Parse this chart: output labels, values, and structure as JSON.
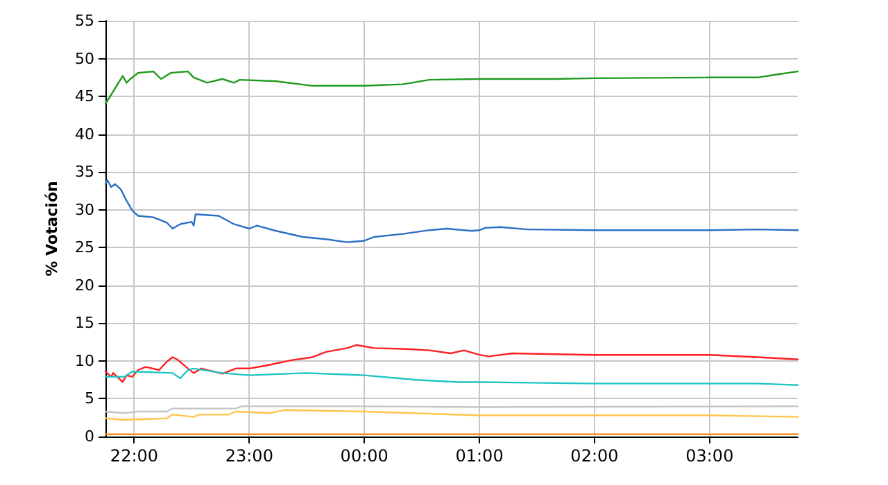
{
  "chart_data": {
    "type": "line",
    "ylabel": "% Votación",
    "xlim": [
      "2000-01-01T21:45",
      "2000-01-02T03:46"
    ],
    "ylim": [
      0,
      55
    ],
    "xticks": [
      {
        "value": "2000-01-01T22:00",
        "label": "22:00"
      },
      {
        "value": "2000-01-01T23:00",
        "label": "23:00"
      },
      {
        "value": "2000-01-02T00:00",
        "label": "00:00"
      },
      {
        "value": "2000-01-02T01:00",
        "label": "01:00"
      },
      {
        "value": "2000-01-02T02:00",
        "label": "02:00"
      },
      {
        "value": "2000-01-02T03:00",
        "label": "03:00"
      }
    ],
    "yticks": [
      0,
      5,
      10,
      15,
      20,
      25,
      30,
      35,
      40,
      45,
      50,
      55
    ],
    "grid": true,
    "marker": "none",
    "line_style": "solid",
    "series": [
      {
        "color": "#1f9a1f",
        "x": [
          "2000-01-01T21:45",
          "2000-01-01T21:54",
          "2000-01-01T21:56",
          "2000-01-01T21:58",
          "2000-01-01T22:02",
          "2000-01-01T22:10",
          "2000-01-01T22:14",
          "2000-01-01T22:19",
          "2000-01-01T22:28",
          "2000-01-01T22:31",
          "2000-01-01T22:38",
          "2000-01-01T22:46",
          "2000-01-01T22:52",
          "2000-01-01T22:55",
          "2000-01-01T23:14",
          "2000-01-01T23:33",
          "2000-01-01T23:47",
          "2000-01-02T00:00",
          "2000-01-02T00:20",
          "2000-01-02T00:34",
          "2000-01-02T01:00",
          "2000-01-02T01:39",
          "2000-01-02T02:00",
          "2000-01-02T03:00",
          "2000-01-02T03:25",
          "2000-01-02T03:35",
          "2000-01-02T03:46"
        ],
        "values": [
          44.0,
          47.7,
          46.8,
          47.3,
          48.1,
          48.3,
          47.3,
          48.1,
          48.3,
          47.5,
          46.8,
          47.3,
          46.8,
          47.2,
          47.0,
          46.4,
          46.4,
          46.4,
          46.6,
          47.2,
          47.3,
          47.3,
          47.4,
          47.5,
          47.5,
          47.9,
          48.3
        ]
      },
      {
        "color": "#2a6fc4",
        "x": [
          "2000-01-01T21:45",
          "2000-01-01T21:46",
          "2000-01-01T21:48",
          "2000-01-01T21:50",
          "2000-01-01T21:53",
          "2000-01-01T21:56",
          "2000-01-01T21:59",
          "2000-01-01T22:02",
          "2000-01-01T22:10",
          "2000-01-01T22:17",
          "2000-01-01T22:20",
          "2000-01-01T22:24",
          "2000-01-01T22:30",
          "2000-01-01T22:31",
          "2000-01-01T22:32",
          "2000-01-01T22:44",
          "2000-01-01T22:52",
          "2000-01-01T23:00",
          "2000-01-01T23:04",
          "2000-01-01T23:14",
          "2000-01-01T23:28",
          "2000-01-01T23:40",
          "2000-01-01T23:51",
          "2000-01-02T00:00",
          "2000-01-02T00:05",
          "2000-01-02T00:20",
          "2000-01-02T00:34",
          "2000-01-02T00:43",
          "2000-01-02T00:56",
          "2000-01-02T01:00",
          "2000-01-02T01:03",
          "2000-01-02T01:11",
          "2000-01-02T01:25",
          "2000-01-02T02:00",
          "2000-01-02T03:00",
          "2000-01-02T03:25",
          "2000-01-02T03:46"
        ],
        "values": [
          33.4,
          33.9,
          33.0,
          33.4,
          32.7,
          31.2,
          29.9,
          29.2,
          29.0,
          28.3,
          27.5,
          28.1,
          28.4,
          27.9,
          29.4,
          29.2,
          28.1,
          27.5,
          27.9,
          27.2,
          26.4,
          26.1,
          25.7,
          25.9,
          26.4,
          26.8,
          27.3,
          27.5,
          27.2,
          27.3,
          27.6,
          27.7,
          27.4,
          27.3,
          27.3,
          27.4,
          27.3
        ]
      },
      {
        "color": "#ff1f1f",
        "x": [
          "2000-01-01T21:45",
          "2000-01-01T21:48",
          "2000-01-01T21:49",
          "2000-01-01T21:54",
          "2000-01-01T21:56",
          "2000-01-01T21:59",
          "2000-01-01T22:02",
          "2000-01-01T22:06",
          "2000-01-01T22:13",
          "2000-01-01T22:17",
          "2000-01-01T22:20",
          "2000-01-01T22:23",
          "2000-01-01T22:28",
          "2000-01-01T22:31",
          "2000-01-01T22:35",
          "2000-01-01T22:46",
          "2000-01-01T22:53",
          "2000-01-01T23:00",
          "2000-01-01T23:09",
          "2000-01-01T23:22",
          "2000-01-01T23:33",
          "2000-01-01T23:40",
          "2000-01-01T23:51",
          "2000-01-01T23:56",
          "2000-01-02T00:05",
          "2000-01-02T00:20",
          "2000-01-02T00:34",
          "2000-01-02T00:45",
          "2000-01-02T00:52",
          "2000-01-02T01:00",
          "2000-01-02T01:05",
          "2000-01-02T01:17",
          "2000-01-02T02:00",
          "2000-01-02T03:00",
          "2000-01-02T03:25",
          "2000-01-02T03:46"
        ],
        "values": [
          8.6,
          7.9,
          8.4,
          7.2,
          8.1,
          7.9,
          8.8,
          9.2,
          8.8,
          9.9,
          10.5,
          10.1,
          9.0,
          8.4,
          9.0,
          8.3,
          9.0,
          9.0,
          9.4,
          10.1,
          10.5,
          11.2,
          11.7,
          12.1,
          11.7,
          11.6,
          11.4,
          11.0,
          11.4,
          10.8,
          10.6,
          11.0,
          10.8,
          10.8,
          10.5,
          10.2
        ]
      },
      {
        "color": "#1fc4c4",
        "x": [
          "2000-01-01T21:45",
          "2000-01-01T21:55",
          "2000-01-01T21:59",
          "2000-01-01T22:20",
          "2000-01-01T22:24",
          "2000-01-01T22:28",
          "2000-01-01T22:31",
          "2000-01-01T22:46",
          "2000-01-01T23:00",
          "2000-01-01T23:29",
          "2000-01-02T00:00",
          "2000-01-02T00:27",
          "2000-01-02T00:49",
          "2000-01-02T01:00",
          "2000-01-02T02:00",
          "2000-01-02T03:00",
          "2000-01-02T03:25",
          "2000-01-02T03:46"
        ],
        "values": [
          7.9,
          7.9,
          8.6,
          8.4,
          7.7,
          8.8,
          9.0,
          8.4,
          8.1,
          8.4,
          8.1,
          7.5,
          7.2,
          7.2,
          7.0,
          7.0,
          7.0,
          6.8
        ]
      },
      {
        "color": "#c4c4c4",
        "x": [
          "2000-01-01T21:45",
          "2000-01-01T21:55",
          "2000-01-01T22:02",
          "2000-01-01T22:17",
          "2000-01-01T22:20",
          "2000-01-01T22:53",
          "2000-01-01T22:56",
          "2000-01-01T23:51",
          "2000-01-02T01:00",
          "2000-01-02T03:46"
        ],
        "values": [
          3.3,
          3.1,
          3.3,
          3.3,
          3.7,
          3.7,
          4.0,
          4.0,
          3.9,
          4.0
        ]
      },
      {
        "color": "#ffc44a",
        "x": [
          "2000-01-01T21:45",
          "2000-01-01T21:55",
          "2000-01-01T22:17",
          "2000-01-01T22:20",
          "2000-01-01T22:31",
          "2000-01-01T22:34",
          "2000-01-01T22:49",
          "2000-01-01T22:53",
          "2000-01-01T23:11",
          "2000-01-01T23:18",
          "2000-01-02T00:00",
          "2000-01-02T01:00",
          "2000-01-02T02:00",
          "2000-01-02T03:00",
          "2000-01-02T03:46"
        ],
        "values": [
          2.4,
          2.2,
          2.4,
          2.9,
          2.6,
          2.9,
          2.9,
          3.3,
          3.1,
          3.5,
          3.3,
          2.8,
          2.8,
          2.8,
          2.6
        ]
      },
      {
        "color": "#ff8c1a",
        "x": [
          "2000-01-01T21:45",
          "2000-01-02T03:46"
        ],
        "values": [
          0.3,
          0.3
        ]
      }
    ]
  }
}
